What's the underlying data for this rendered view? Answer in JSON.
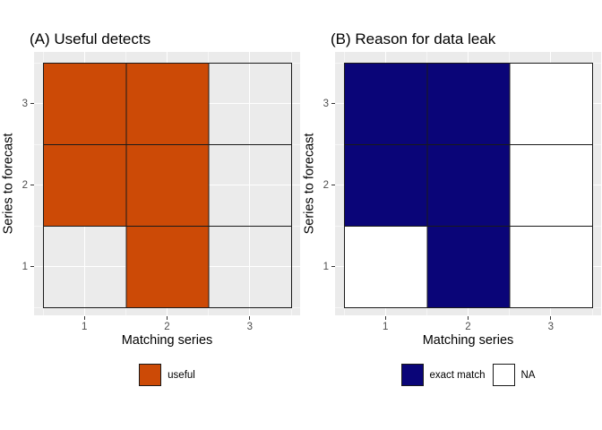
{
  "axes": {
    "x_title": "Matching series",
    "y_title": "Series to forecast",
    "x_ticks": [
      "1",
      "2",
      "3"
    ],
    "y_ticks_top_to_bottom": [
      "3",
      "2",
      "1"
    ]
  },
  "figures": [
    {
      "id": "A",
      "title": "(A) Useful detects",
      "na_fill": "none",
      "legend": [
        {
          "label": "useful",
          "fill": "#CC4A06",
          "border": "#1A1A1A"
        }
      ]
    },
    {
      "id": "B",
      "title": "(B) Reason for data leak",
      "na_fill": "#FFFFFF",
      "legend": [
        {
          "label": "exact match",
          "fill": "#0A0578",
          "border": "#1A1A1A"
        },
        {
          "label": "NA",
          "fill": "#FFFFFF",
          "border": "#1A1A1A"
        }
      ]
    }
  ],
  "colors": {
    "panel_background": "#EBEBEB",
    "gridline": "#FFFFFF",
    "tile_border": "#1A1A1A",
    "tick_mark": "#333333",
    "axis_text": "#4D4D4D",
    "title_text": "#000000",
    "orange": "#CC4A06",
    "navy": "#0A0578"
  },
  "chart_data": [
    {
      "type": "heatmap",
      "title": "(A) Useful detects",
      "xlabel": "Matching series",
      "ylabel": "Series to forecast",
      "x": [
        1,
        2,
        3
      ],
      "y": [
        1,
        2,
        3
      ],
      "xlim": [
        0.5,
        3.5
      ],
      "ylim": [
        0.5,
        3.5
      ],
      "grid": "white major gridlines at x=1,2,3 and y=1,2,3 on grey panel",
      "legend_position": "bottom",
      "legend_entries": [
        "useful"
      ],
      "rows_top_to_bottom": [
        [
          "useful",
          "useful",
          null
        ],
        [
          "useful",
          "useful",
          null
        ],
        [
          null,
          "useful",
          null
        ]
      ],
      "value_colors": {
        "useful": "#CC4A06"
      },
      "na_rendering": "transparent tile with black border (panel background and gridlines show through)"
    },
    {
      "type": "heatmap",
      "title": "(B) Reason for data leak",
      "xlabel": "Matching series",
      "ylabel": "Series to forecast",
      "x": [
        1,
        2,
        3
      ],
      "y": [
        1,
        2,
        3
      ],
      "xlim": [
        0.5,
        3.5
      ],
      "ylim": [
        0.5,
        3.5
      ],
      "grid": "white major gridlines at x=1,2,3 and y=1,2,3 on grey panel",
      "legend_position": "bottom",
      "legend_entries": [
        "exact match",
        "NA"
      ],
      "rows_top_to_bottom": [
        [
          "exact match",
          "exact match",
          "NA"
        ],
        [
          "exact match",
          "exact match",
          "NA"
        ],
        [
          "NA",
          "exact match",
          "NA"
        ]
      ],
      "value_colors": {
        "exact match": "#0A0578",
        "NA": "#FFFFFF"
      },
      "na_rendering": "white tile with black border"
    }
  ]
}
